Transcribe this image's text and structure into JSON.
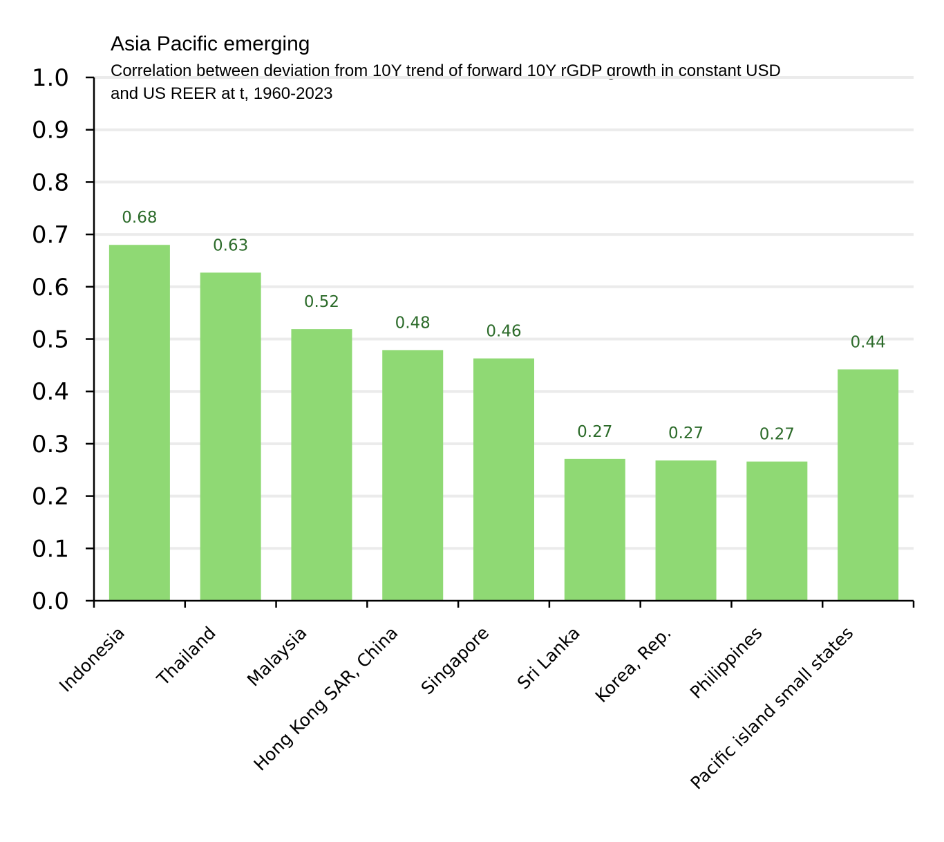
{
  "chart_data": {
    "type": "bar",
    "title": "Asia Pacific emerging",
    "subtitle_lines": [
      "Correlation between deviation from 10Y trend of forward 10Y rGDP growth in constant USD",
      "and US REER at t, 1960-2023"
    ],
    "categories": [
      "Indonesia",
      "Thailand",
      "Malaysia",
      "Hong Kong SAR, China",
      "Singapore",
      "Sri Lanka",
      "Korea, Rep.",
      "Philippines",
      "Pacific island small states"
    ],
    "values": [
      0.68,
      0.627,
      0.519,
      0.479,
      0.463,
      0.271,
      0.268,
      0.266,
      0.442
    ],
    "data_labels": [
      "0.68",
      "0.63",
      "0.52",
      "0.48",
      "0.46",
      "0.27",
      "0.27",
      "0.27",
      "0.44"
    ],
    "yticks": [
      "0.0",
      "0.1",
      "0.2",
      "0.3",
      "0.4",
      "0.5",
      "0.6",
      "0.7",
      "0.8",
      "0.9",
      "1.0"
    ],
    "ylim": [
      0,
      1.0
    ],
    "xlabel": "",
    "ylabel": "",
    "grid": true,
    "colors": {
      "bar": "#8fd974",
      "label": "#2c6b2a",
      "grid": "#ebebeb",
      "axis": "#000000"
    }
  }
}
